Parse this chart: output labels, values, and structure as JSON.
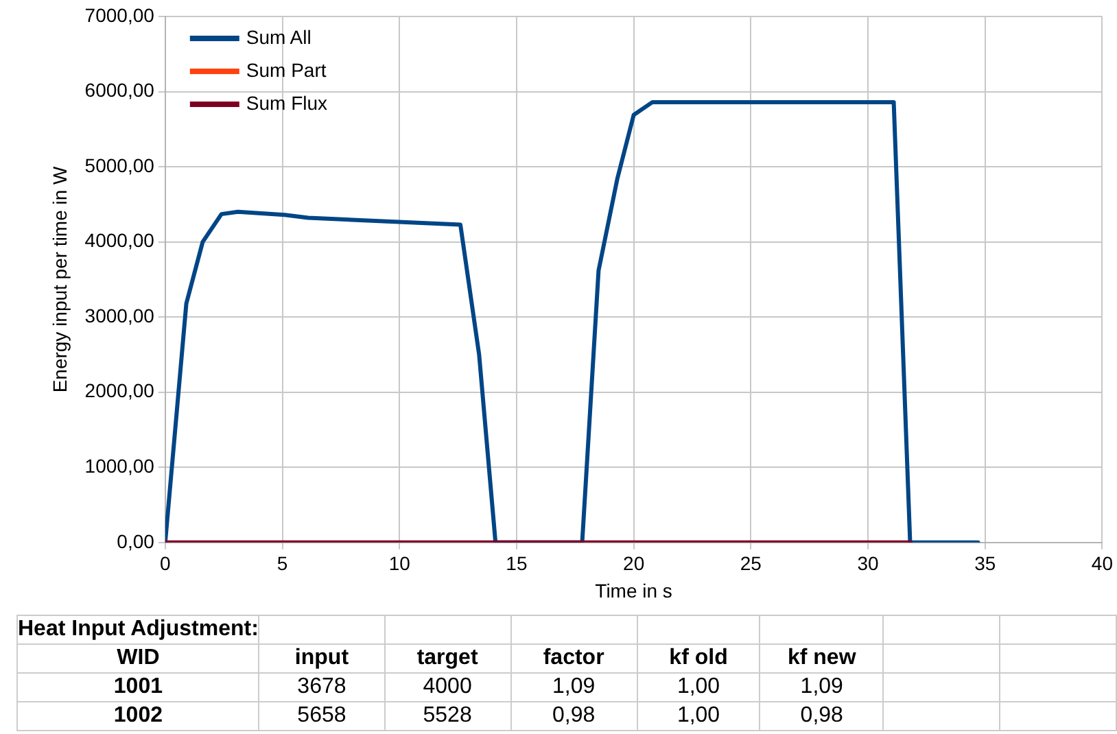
{
  "chart_data": {
    "type": "line",
    "xlabel": "Time in s",
    "ylabel": "Energy input per time in W",
    "series": [
      {
        "name": "Sum All",
        "color": "#004586",
        "x": [
          0,
          0.9,
          1.6,
          2.4,
          3.1,
          5.1,
          6.1,
          12.6,
          13.4,
          14.1,
          17.8,
          18.5,
          19.3,
          20.0,
          20.8,
          31.1,
          31.8,
          34.7
        ],
        "values": [
          0,
          3180,
          4000,
          4370,
          4400,
          4360,
          4320,
          4230,
          2500,
          0,
          0,
          3620,
          4840,
          5690,
          5860,
          5860,
          0,
          0
        ]
      },
      {
        "name": "Sum Part",
        "color": "#ff420e"
      },
      {
        "name": "Sum Flux",
        "color": "#7e0021",
        "x": [
          0,
          31.8
        ],
        "values": [
          0,
          0
        ]
      }
    ],
    "xlim": [
      0,
      40
    ],
    "xticks": [
      0,
      5,
      10,
      15,
      20,
      25,
      30,
      35,
      40
    ],
    "ylim": [
      0,
      7000
    ],
    "yticks": [
      {
        "value": 0,
        "label": "0,00"
      },
      {
        "value": 1000,
        "label": "1000,00"
      },
      {
        "value": 2000,
        "label": "2000,00"
      },
      {
        "value": 3000,
        "label": "3000,00"
      },
      {
        "value": 4000,
        "label": "4000,00"
      },
      {
        "value": 5000,
        "label": "5000,00"
      },
      {
        "value": 6000,
        "label": "6000,00"
      },
      {
        "value": 7000,
        "label": "7000,00"
      }
    ],
    "grid": true,
    "legend": "top left",
    "marker": "none",
    "line_style": "solid",
    "annotations": [
      "Heat Input Adjustment:",
      "WID",
      "input",
      "target",
      "factor",
      "kf old",
      "kf new",
      "1001",
      "3678",
      "4000",
      "1,09",
      "1,00",
      "1,09",
      "1002",
      "5658",
      "5528",
      "0,98",
      "1,00",
      "0,98"
    ]
  }
}
